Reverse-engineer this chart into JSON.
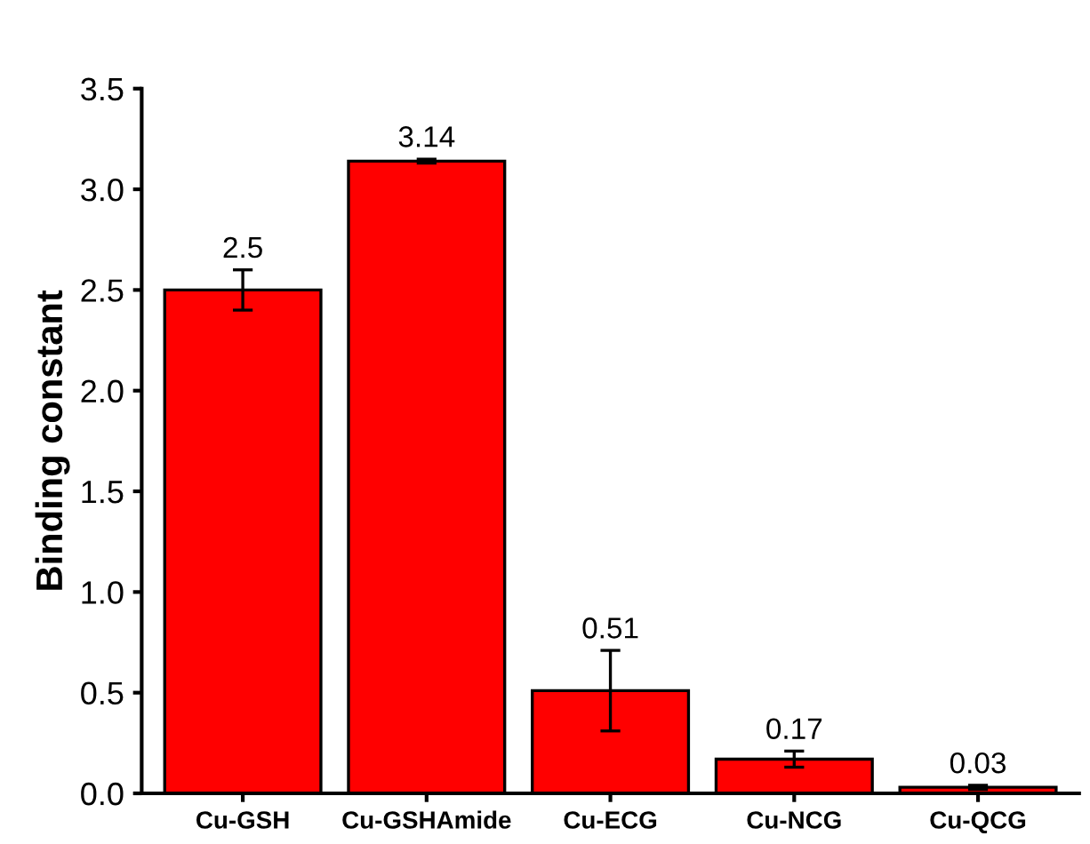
{
  "chart_data": {
    "type": "bar",
    "ylabel": "Binding constant",
    "categories": [
      "Cu-GSH",
      "Cu-GSHAmide",
      "Cu-ECG",
      "Cu-NCG",
      "Cu-QCG"
    ],
    "values": [
      2.5,
      3.14,
      0.51,
      0.17,
      0.03
    ],
    "errors": [
      0.1,
      0.01,
      0.2,
      0.04,
      0.01
    ],
    "color": "#ff0000",
    "data_labels": true,
    "ylim": [
      0,
      3.5
    ],
    "yticks": [
      {
        "value": 0,
        "label": "0.0"
      },
      0.5,
      {
        "value": 1,
        "label": "1.0"
      },
      1.5,
      {
        "value": 2,
        "label": "2.0"
      },
      2.5,
      {
        "value": 3,
        "label": "3.0"
      },
      3.5
    ],
    "grid": false
  }
}
